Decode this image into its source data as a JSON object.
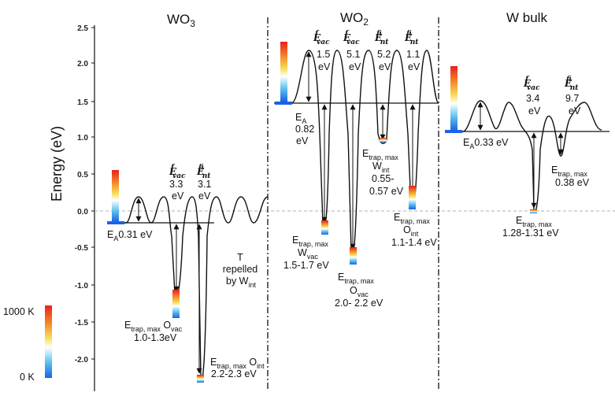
{
  "axis": {
    "ylabel": "Energy (eV)",
    "yticks": [
      "2.5",
      "2.0",
      "1.5",
      "1.0",
      "0.5",
      "0.0",
      "-0.5",
      "-1.0",
      "-1.5",
      "-2.0"
    ]
  },
  "colorbar": {
    "max_label": "1000 K",
    "min_label": "0 K"
  },
  "panels": {
    "wo3": {
      "title_base": "WO",
      "title_sub": "3",
      "evac": {
        "value": "3.3",
        "unit": "eV"
      },
      "eint": {
        "value": "3.1",
        "unit": "eV"
      },
      "ea": "0.31 eV",
      "trap_vac": {
        "line1_main": "trap, max",
        "line1_tail_base": " O",
        "line1_tail_sub": "vac",
        "line2": "1.0-1.3eV"
      },
      "trap_int": {
        "line1_main": "trap, max",
        "line1_tail_base": " O",
        "line1_tail_sub": "int",
        "line2": "2.2-2.3 eV"
      },
      "note": {
        "line1": "T",
        "line2": "repelled",
        "line3_base": "by W",
        "line3_sub": "int"
      }
    },
    "wo2": {
      "title_base": "WO",
      "title_sub": "2",
      "evac1": {
        "value": "1.5",
        "unit": "eV"
      },
      "evac2": {
        "value": "5.1",
        "unit": "eV"
      },
      "eint1": {
        "value": "5.2",
        "unit": "eV"
      },
      "eint2": {
        "value": "1.1",
        "unit": "eV"
      },
      "ea": {
        "line1": "0.82",
        "line2": "eV"
      },
      "trap_wvac": {
        "line1": "trap, max",
        "line2_base": "W",
        "line2_sub": "vac",
        "line3": "1.5-1.7 eV"
      },
      "trap_ovac": {
        "line1": "trap, max",
        "line2_base": "O",
        "line2_sub": "vac",
        "line3": "2.0- 2.2 eV"
      },
      "trap_wint": {
        "line1": "trap, max",
        "line2_base": "W",
        "line2_sub": "int",
        "line3": "0.55-",
        "line4": "0.57 eV"
      },
      "trap_oint": {
        "line1": "trap, max",
        "line2_base": "O",
        "line2_sub": "int",
        "line3": "1.1-1.4 eV"
      }
    },
    "wbulk": {
      "title": "W bulk",
      "evac": {
        "value": "3.4",
        "unit": "eV"
      },
      "eint": {
        "value": "9.7",
        "unit": "eV"
      },
      "ea": "0.33 eV",
      "trap_int": {
        "line1": "trap, max",
        "line2": "0.38 eV"
      },
      "trap_vac": {
        "line1": "trap, max",
        "line2": "1.28-1.31 eV"
      }
    }
  },
  "symbols": {
    "E": "E",
    "A": "A",
    "f": "f",
    "vac": "vac",
    "int": "int"
  },
  "colors": {
    "curve": "#111111",
    "divider": "#111111",
    "zero_line": "#b0b0b0",
    "cbar_top": "#e8201c",
    "cbar_bottom": "#1a62e6"
  }
}
